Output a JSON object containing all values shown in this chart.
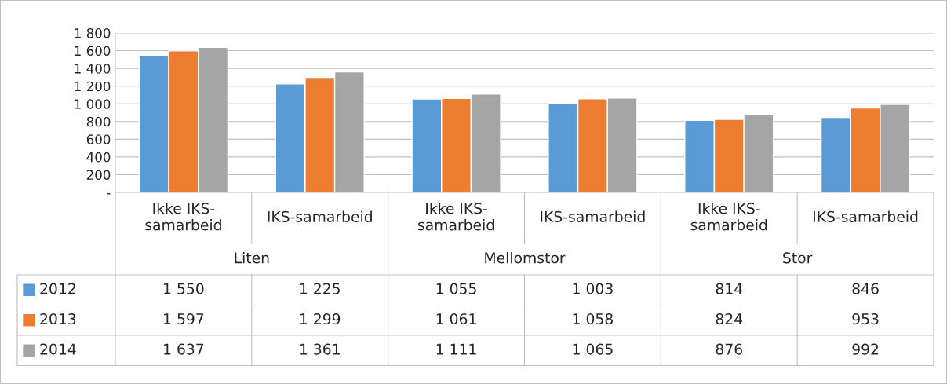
{
  "chart_data": {
    "type": "bar",
    "categories": [
      "Ikke IKS-\nsamarbeid",
      "IKS-samarbeid",
      "Ikke IKS-\nsamarbeid",
      "IKS-samarbeid",
      "Ikke IKS-\nsamarbeid",
      "IKS-samarbeid"
    ],
    "annotations": [
      "Liten",
      "Mellomstor",
      "Stor"
    ],
    "series": [
      {
        "name": "2012",
        "color": "#5b9bd5",
        "values": [
          1550,
          1225,
          1055,
          1003,
          814,
          846
        ],
        "value_labels": [
          "1 550",
          "1 225",
          "1 055",
          "1 003",
          "814",
          "846"
        ]
      },
      {
        "name": "2013",
        "color": "#ed7d31",
        "values": [
          1597,
          1299,
          1061,
          1058,
          824,
          953
        ],
        "value_labels": [
          "1 597",
          "1 299",
          "1 061",
          "1 058",
          "824",
          "953"
        ]
      },
      {
        "name": "2014",
        "color": "#a5a5a5",
        "values": [
          1637,
          1361,
          1111,
          1065,
          876,
          992
        ],
        "value_labels": [
          "1 637",
          "1 361",
          "1 111",
          "1 065",
          "876",
          "992"
        ]
      }
    ],
    "ylim": [
      0,
      1800
    ],
    "yticks": [
      {
        "value": 0,
        "label": "-"
      },
      {
        "value": 200,
        "label": "200"
      },
      {
        "value": 400,
        "label": "400"
      },
      {
        "value": 600,
        "label": "600"
      },
      {
        "value": 800,
        "label": "800"
      },
      {
        "value": 1000,
        "label": "1 000"
      },
      {
        "value": 1200,
        "label": "1 200"
      },
      {
        "value": 1400,
        "label": "1 400"
      },
      {
        "value": 1600,
        "label": "1 600"
      },
      {
        "value": 1800,
        "label": "1 800"
      }
    ],
    "grid": "y",
    "legend": "bottom left"
  }
}
